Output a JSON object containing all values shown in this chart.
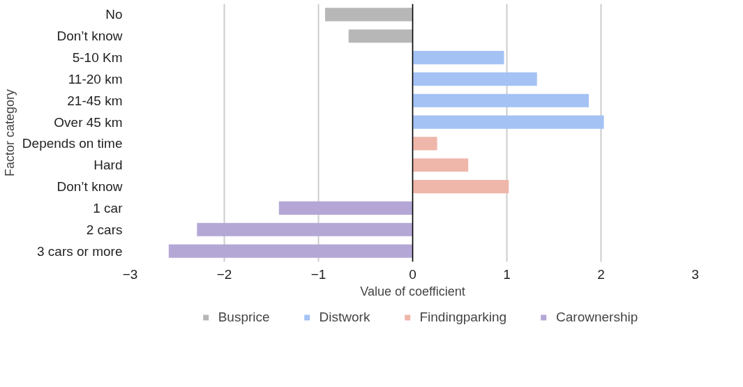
{
  "chart_data": {
    "type": "bar",
    "orientation": "horizontal",
    "categories": [
      "No",
      "Don’t know",
      "5-10 Km",
      "11-20 km",
      "21-45 km",
      "Over 45 km",
      "Depends on time",
      "Hard",
      "Don’t know",
      "1 car",
      "2 cars",
      "3 cars or more"
    ],
    "series": [
      {
        "name": "Busprice",
        "color": "#b7b7b7",
        "values": [
          -0.93,
          -0.68,
          null,
          null,
          null,
          null,
          null,
          null,
          null,
          null,
          null,
          null
        ]
      },
      {
        "name": "Distwork",
        "color": "#a4c2f4",
        "values": [
          null,
          null,
          0.97,
          1.32,
          1.87,
          2.03,
          null,
          null,
          null,
          null,
          null,
          null
        ]
      },
      {
        "name": "Findingparking",
        "color": "#efb6aa",
        "values": [
          null,
          null,
          null,
          null,
          null,
          null,
          0.26,
          0.59,
          1.02,
          null,
          null,
          null
        ]
      },
      {
        "name": "Carownership",
        "color": "#b4a7d6",
        "values": [
          null,
          null,
          null,
          null,
          null,
          null,
          null,
          null,
          null,
          -1.42,
          -2.29,
          -2.59
        ]
      }
    ],
    "xlim": [
      -3,
      3
    ],
    "xticks": [
      -3,
      -2,
      -1,
      0,
      1,
      2,
      3
    ],
    "xlabel": "Value of coefficient",
    "ylabel": "Factor category",
    "ref_lines": [
      {
        "axis": "x",
        "value": 0,
        "label": null,
        "color": "#000000"
      }
    ],
    "grid": "x",
    "legend": "bottom"
  }
}
